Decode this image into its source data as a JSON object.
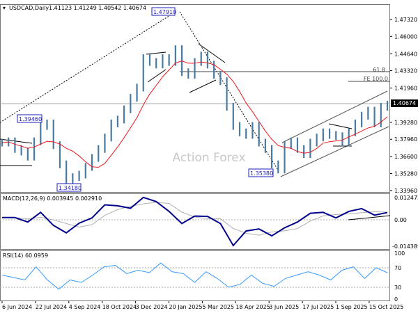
{
  "header": {
    "symbol": "USDCAD,Daily",
    "ohlc": "1.41123 1.41249 1.40542 1.40674"
  },
  "watermark": "Action Forex",
  "colors": {
    "price": "#4a7aa0",
    "ma": "#e8181e",
    "macd": "#00008b",
    "signal": "#b0b0b0",
    "rsi": "#3399ff",
    "label_box": "#1e1ebe"
  },
  "chart_data": [
    {
      "type": "line",
      "title": "USDCAD,Daily",
      "price_ticks": [
        "1.47320",
        "1.46000",
        "1.44640",
        "1.43320",
        "1.41960",
        "1.39280",
        "1.37960",
        "1.36600",
        "1.35280",
        "1.33960"
      ],
      "current_price": "1.40674",
      "ylim": [
        1.3396,
        1.4732
      ],
      "closes": [
        1.377,
        1.378,
        1.372,
        1.37,
        1.366,
        1.378,
        1.39,
        1.392,
        1.375,
        1.36,
        1.347,
        1.35,
        1.352,
        1.358,
        1.365,
        1.372,
        1.381,
        1.392,
        1.395,
        1.403,
        1.412,
        1.42,
        1.443,
        1.44,
        1.438,
        1.443,
        1.44,
        1.45,
        1.432,
        1.43,
        1.44,
        1.445,
        1.438,
        1.43,
        1.425,
        1.405,
        1.39,
        1.385,
        1.383,
        1.39,
        1.377,
        1.372,
        1.36,
        1.356,
        1.375,
        1.378,
        1.372,
        1.368,
        1.377,
        1.381,
        1.385,
        1.383,
        1.382,
        1.377,
        1.385,
        1.392,
        1.398,
        1.402,
        1.392,
        1.405,
        1.4067
      ],
      "annotations": {
        "high": "1.47910",
        "swing_high": "1.39460",
        "low": "1.34180",
        "swing_low": "1.35380",
        "fib": "61.8",
        "fe": "FE 100.0"
      }
    },
    {
      "type": "line",
      "title": "MACD(12,26,9) 0.003945 0.002910",
      "ticks": [
        "0.012472",
        "0.00",
        "-0.014389"
      ],
      "ylim": [
        -0.014389,
        0.012472
      ],
      "values": [
        0.0012,
        0.0012,
        -0.0012,
        0.004,
        -0.003,
        -0.007,
        -0.0018,
        0.001,
        0.008,
        0.0075,
        0.0062,
        0.012,
        0.0098,
        0.0045,
        -0.002,
        0.002,
        0.0018,
        -0.002,
        -0.0138,
        -0.006,
        -0.0049,
        -0.0086,
        -0.0043,
        -0.0012,
        0.0035,
        0.004,
        0.001,
        0.0045,
        0.006,
        0.0025,
        0.0039
      ]
    },
    {
      "type": "line",
      "title": "RSI(14) 60.0959",
      "ticks": [
        "100",
        "70",
        "30",
        "0"
      ],
      "ylim": [
        0,
        100
      ],
      "values": [
        55,
        50,
        45,
        72,
        45,
        26,
        45,
        40,
        55,
        72,
        75,
        58,
        65,
        60,
        80,
        62,
        58,
        40,
        62,
        48,
        30,
        36,
        55,
        38,
        32,
        48,
        55,
        62,
        55,
        45,
        65,
        72,
        48,
        70,
        60
      ]
    }
  ],
  "x_labels": [
    "6 Jun 2024",
    "22 Jul 2024",
    "4 Sep 2024",
    "18 Oct 2024",
    "3 Dec 2024",
    "20 Jan 2025",
    "5 Mar 2025",
    "18 Apr 2025",
    "3 Jun 2025",
    "17 Jul 2025",
    "1 Sep 2025",
    "15 Oct 2025"
  ]
}
